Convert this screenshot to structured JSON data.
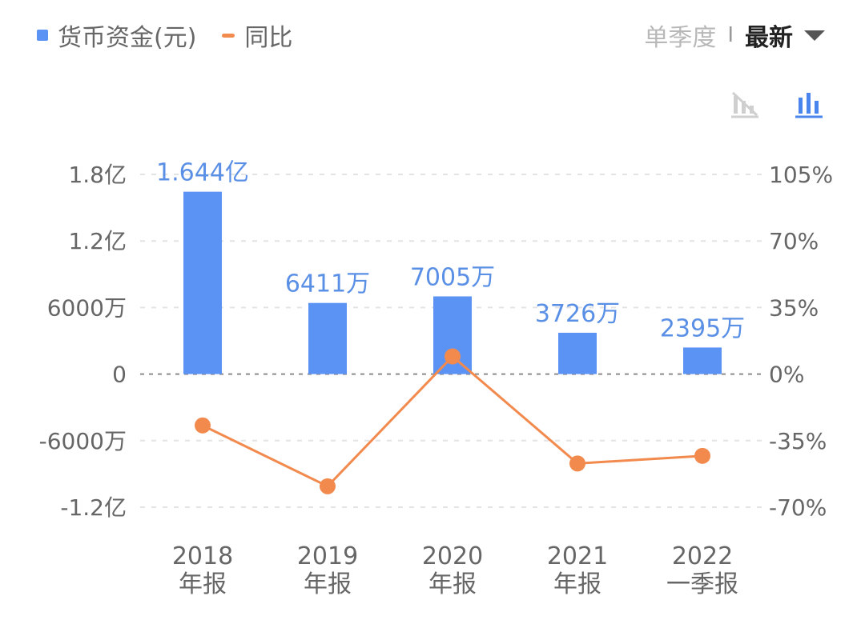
{
  "legend": {
    "bar_label": "货币资金(元)",
    "line_label": "同比",
    "bar_color": "#5b93f5",
    "line_color": "#f28a4e"
  },
  "controls": {
    "period_option": "单季度",
    "separator": "I",
    "active_option": "最新",
    "icons": [
      "no-line-chart-icon",
      "bar-chart-icon"
    ]
  },
  "chart_data": {
    "type": "bar",
    "categories": [
      [
        "2018",
        "年报"
      ],
      [
        "2019",
        "年报"
      ],
      [
        "2020",
        "年报"
      ],
      [
        "2021",
        "年报"
      ],
      [
        "2022",
        "一季报"
      ]
    ],
    "series": [
      {
        "name": "货币资金(元)",
        "type": "bar",
        "axis": "left",
        "values": [
          164400000,
          64110000,
          70050000,
          37260000,
          23950000
        ],
        "labels": [
          "1.644亿",
          "6411万",
          "7005万",
          "3726万",
          "2395万"
        ]
      },
      {
        "name": "同比",
        "type": "line",
        "axis": "right",
        "values": [
          -27,
          -59,
          9.3,
          -47,
          -43
        ]
      }
    ],
    "left_axis": {
      "ticks": [
        180000000,
        120000000,
        60000000,
        0,
        -60000000,
        -120000000
      ],
      "tick_labels": [
        "1.8亿",
        "1.2亿",
        "6000万",
        "0",
        "-6000万",
        "-1.2亿"
      ],
      "range": [
        -120000000,
        180000000
      ]
    },
    "right_axis": {
      "ticks": [
        105,
        70,
        35,
        0,
        -35,
        -70
      ],
      "tick_labels": [
        "105%",
        "70%",
        "35%",
        "0%",
        "-35%",
        "-70%"
      ],
      "range": [
        -70,
        105
      ]
    },
    "grid": true
  }
}
